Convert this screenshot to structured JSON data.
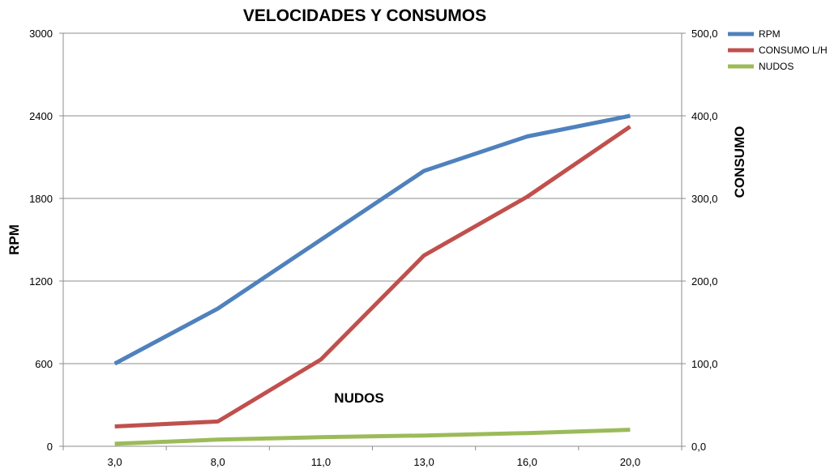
{
  "chart_data": {
    "type": "line",
    "title": "VELOCIDADES Y CONSUMOS",
    "xlabel": "NUDOS",
    "ylabel": "RPM",
    "y2label": "CONSUMO",
    "categories": [
      "3,0",
      "8,0",
      "11,0",
      "13,0",
      "16,0",
      "20,0"
    ],
    "ylim": [
      0,
      3000
    ],
    "y2lim": [
      0,
      500
    ],
    "yticks": [
      "0",
      "600",
      "1200",
      "1800",
      "2400",
      "3000"
    ],
    "y2ticks": [
      "0,0",
      "100,0",
      "200,0",
      "300,0",
      "400,0",
      "500,0"
    ],
    "grid": true,
    "legend_position": "top-right",
    "series": [
      {
        "name": "RPM",
        "axis": "left",
        "color": "#4F81BD",
        "values": [
          600,
          1000,
          1500,
          2000,
          2250,
          2400
        ]
      },
      {
        "name": "CONSUMO L/H",
        "axis": "right",
        "color": "#C0504D",
        "values": [
          24,
          30,
          105,
          231,
          302,
          387
        ]
      },
      {
        "name": "NUDOS",
        "axis": "right",
        "color": "#9BBB59",
        "values": [
          3,
          8,
          11,
          13,
          16,
          20
        ]
      }
    ]
  }
}
